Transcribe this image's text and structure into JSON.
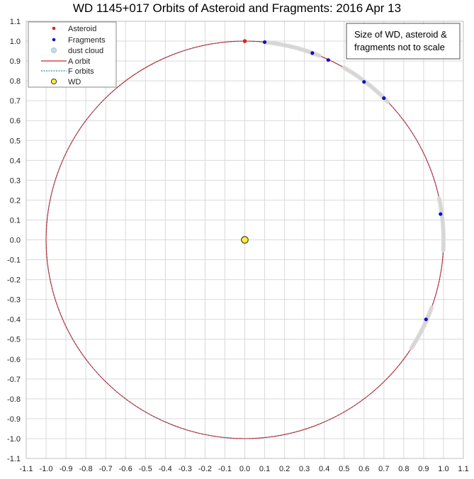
{
  "chart_data": {
    "type": "scatter",
    "title": "WD 1145+017 Orbits of Asteroid and Fragments: 2016 Apr 13",
    "xlim": [
      -1.1,
      1.1
    ],
    "ylim": [
      -1.1,
      1.1
    ],
    "xticks": [
      "-1.1",
      "-1.0",
      "-0.9",
      "-0.8",
      "-0.7",
      "-0.6",
      "-0.5",
      "-0.4",
      "-0.3",
      "-0.2",
      "-0.1",
      "0.0",
      "0.1",
      "0.2",
      "0.3",
      "0.4",
      "0.5",
      "0.6",
      "0.7",
      "0.8",
      "0.9",
      "1.0",
      "1.1"
    ],
    "yticks": [
      "1.1",
      "1.0",
      "0.9",
      "0.8",
      "0.7",
      "0.6",
      "0.5",
      "0.4",
      "0.3",
      "0.2",
      "0.1",
      "0.0",
      "-0.1",
      "-0.2",
      "-0.3",
      "-0.4",
      "-0.5",
      "-0.6",
      "-0.7",
      "-0.8",
      "-0.9",
      "-1.0",
      "-1.1"
    ],
    "grid": true,
    "legend_position": "top-left",
    "note": [
      "Size of WD, asteroid &",
      "fragments not to scale"
    ],
    "series": [
      {
        "name": "Asteroid",
        "color": "#e02020",
        "points": [
          [
            0.0,
            1.0
          ]
        ]
      },
      {
        "name": "Fragments",
        "color": "#1010c8",
        "points": [
          [
            0.1,
            0.995
          ],
          [
            0.34,
            0.94
          ],
          [
            0.42,
            0.905
          ],
          [
            0.6,
            0.795
          ],
          [
            0.7,
            0.713
          ],
          [
            0.985,
            0.13
          ],
          [
            0.912,
            -0.4
          ]
        ]
      },
      {
        "name": "dust cloud",
        "color": "#d8d8d8",
        "arcs_deg": [
          [
            68,
            84
          ],
          [
            44,
            60
          ],
          [
            -3,
            12
          ],
          [
            -33,
            -20
          ]
        ]
      },
      {
        "name": "A orbit",
        "color": "#c0282e",
        "radius": 1.0
      },
      {
        "name": "F orbits",
        "color": "#2e8ba8",
        "radius": 1.0
      },
      {
        "name": "WD",
        "color": "#ffee33",
        "points": [
          [
            0.0,
            0.0
          ]
        ]
      }
    ]
  }
}
